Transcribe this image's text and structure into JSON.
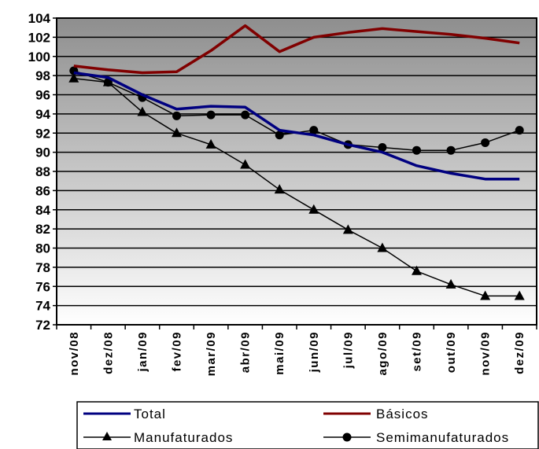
{
  "chart_data": {
    "type": "line",
    "categories": [
      "nov/08",
      "dez/08",
      "jan/09",
      "fev/09",
      "mar/09",
      "abr/09",
      "mai/09",
      "jun/09",
      "jul/09",
      "ago/09",
      "set/09",
      "out/09",
      "nov/09",
      "dez/09"
    ],
    "ylim": [
      72,
      104
    ],
    "yticks": [
      72,
      74,
      76,
      78,
      80,
      82,
      84,
      86,
      88,
      90,
      92,
      94,
      96,
      98,
      100,
      102,
      104
    ],
    "grid": true,
    "legend_position": "bottom",
    "series": [
      {
        "name": "Total",
        "color": "#000080",
        "marker": "none",
        "values": [
          98.3,
          97.8,
          96.0,
          94.5,
          94.8,
          94.7,
          92.3,
          91.8,
          90.8,
          90.0,
          88.6,
          87.8,
          87.2,
          87.2
        ]
      },
      {
        "name": "Básicos",
        "color": "#800000",
        "marker": "none",
        "values": [
          99.0,
          98.6,
          98.3,
          98.4,
          100.6,
          103.2,
          100.5,
          102.0,
          102.5,
          102.9,
          102.6,
          102.3,
          101.9,
          101.4
        ]
      },
      {
        "name": "Manufaturados",
        "color": "#000000",
        "marker": "triangle",
        "values": [
          97.7,
          97.3,
          94.2,
          92.0,
          90.8,
          88.7,
          86.1,
          84.0,
          81.9,
          80.0,
          77.6,
          76.2,
          75.0,
          75.0
        ]
      },
      {
        "name": "Semimanufaturados",
        "color": "#000000",
        "marker": "circle",
        "values": [
          98.5,
          97.3,
          95.7,
          93.8,
          93.9,
          93.9,
          91.8,
          92.3,
          90.8,
          90.5,
          90.2,
          90.2,
          91.0,
          92.3
        ]
      }
    ]
  }
}
